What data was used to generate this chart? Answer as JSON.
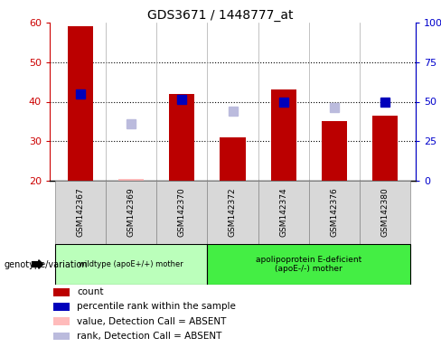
{
  "title": "GDS3671 / 1448777_at",
  "samples": [
    "GSM142367",
    "GSM142369",
    "GSM142370",
    "GSM142372",
    "GSM142374",
    "GSM142376",
    "GSM142380"
  ],
  "count_values": [
    59,
    null,
    42,
    31,
    43,
    35,
    36.5
  ],
  "count_absent": [
    null,
    20.5,
    null,
    null,
    null,
    null,
    null
  ],
  "rank_values": [
    42,
    null,
    40.5,
    null,
    40,
    null,
    40
  ],
  "rank_absent": [
    null,
    34.5,
    null,
    37.5,
    null,
    38.5,
    null
  ],
  "ylim_left": [
    20,
    60
  ],
  "ylim_right": [
    0,
    100
  ],
  "yticks_left": [
    20,
    30,
    40,
    50,
    60
  ],
  "yticks_right": [
    0,
    25,
    50,
    75,
    100
  ],
  "ytick_labels_right": [
    "0",
    "25",
    "50",
    "75",
    "100%"
  ],
  "bar_color": "#bb0000",
  "bar_absent_color": "#ffbbbb",
  "rank_color": "#0000bb",
  "rank_absent_color": "#bbbbdd",
  "group1_samples": [
    0,
    1,
    2
  ],
  "group2_samples": [
    3,
    4,
    5,
    6
  ],
  "group1_label": "wildtype (apoE+/+) mother",
  "group2_label": "apolipoprotein E-deficient\n(apoE-/-) mother",
  "group1_color": "#bbffbb",
  "group2_color": "#44ee44",
  "legend_items": [
    {
      "label": "count",
      "color": "#bb0000"
    },
    {
      "label": "percentile rank within the sample",
      "color": "#0000bb"
    },
    {
      "label": "value, Detection Call = ABSENT",
      "color": "#ffbbbb"
    },
    {
      "label": "rank, Detection Call = ABSENT",
      "color": "#bbbbdd"
    }
  ],
  "bar_width": 0.5,
  "rank_marker_size": 7,
  "left_tick_color": "#cc0000",
  "right_tick_color": "#0000cc",
  "bg_color": "#ffffff",
  "plot_bg_color": "#ffffff",
  "grid_color": "#000000"
}
